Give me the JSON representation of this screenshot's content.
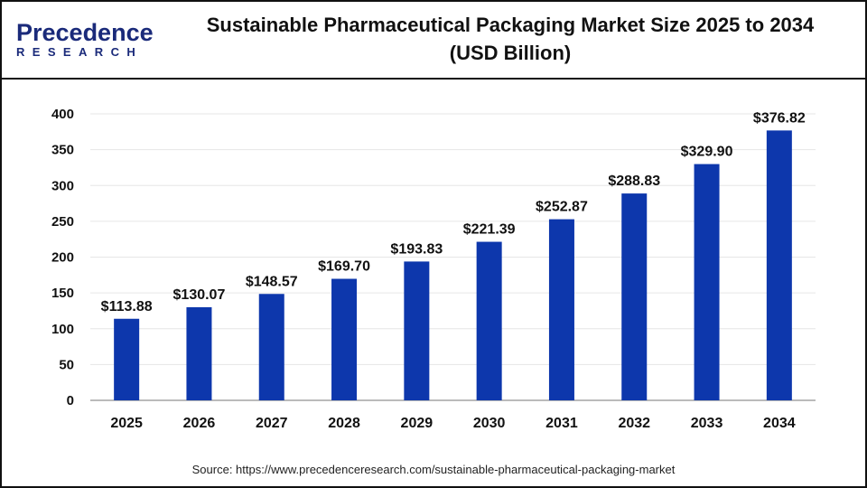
{
  "logo": {
    "line1": "Precedence",
    "line2": "RESEARCH"
  },
  "title": "Sustainable Pharmaceutical Packaging Market Size 2025 to 2034",
  "subtitle": "(USD Billion)",
  "source": "Source: https://www.precedenceresearch.com/sustainable-pharmaceutical-packaging-market",
  "chart_data": {
    "type": "bar",
    "title": "Sustainable Pharmaceutical Packaging Market Size 2025 to 2034 (USD Billion)",
    "categories": [
      "2025",
      "2026",
      "2027",
      "2028",
      "2029",
      "2030",
      "2031",
      "2032",
      "2033",
      "2034"
    ],
    "values": [
      113.88,
      130.07,
      148.57,
      169.7,
      193.83,
      221.39,
      252.87,
      288.83,
      329.9,
      376.82
    ],
    "data_labels": [
      "$113.88",
      "$130.07",
      "$148.57",
      "$169.70",
      "$193.83",
      "$221.39",
      "$252.87",
      "$288.83",
      "$329.90",
      "$376.82"
    ],
    "yticks": [
      "0",
      "50",
      "100",
      "150",
      "200",
      "250",
      "300",
      "350",
      "400"
    ],
    "ylim": [
      0,
      400
    ],
    "xlabel": "",
    "ylabel": "",
    "grid": true,
    "bar_color": "#0d37ac"
  }
}
